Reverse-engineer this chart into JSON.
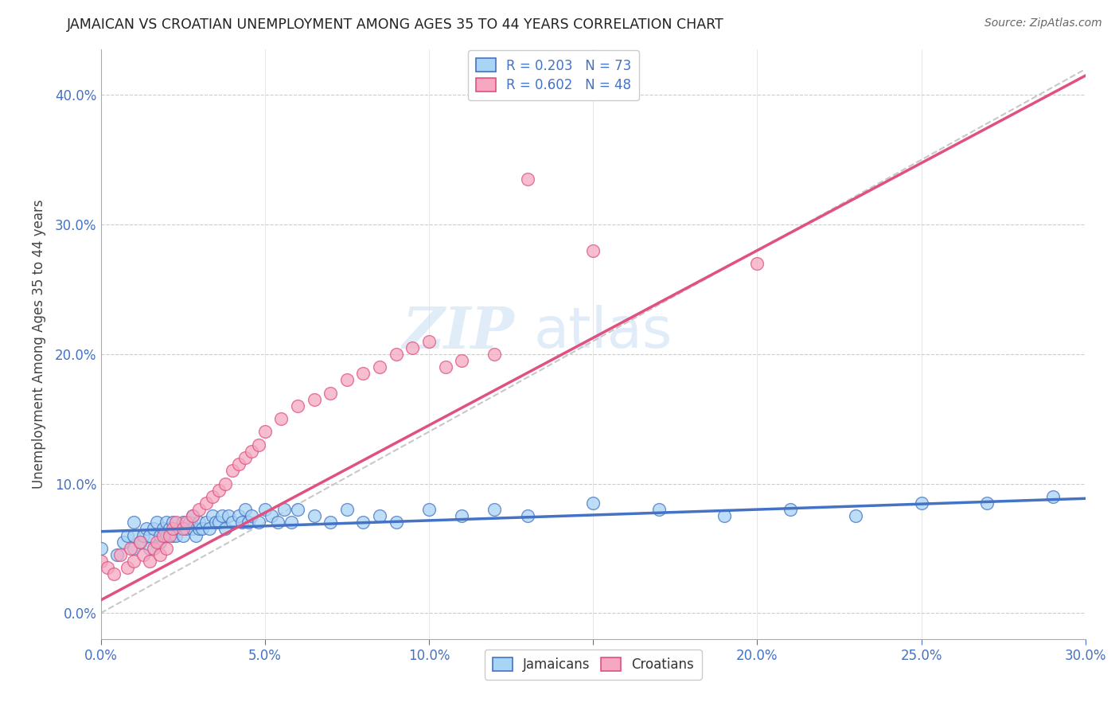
{
  "title": "JAMAICAN VS CROATIAN UNEMPLOYMENT AMONG AGES 35 TO 44 YEARS CORRELATION CHART",
  "source": "Source: ZipAtlas.com",
  "ylabel_label": "Unemployment Among Ages 35 to 44 years",
  "xmin": 0.0,
  "xmax": 0.3,
  "ymin": -0.02,
  "ymax": 0.435,
  "jamaicans_label": "Jamaicans",
  "croatians_label": "Croatians",
  "r_jamaicans": 0.203,
  "n_jamaicans": 73,
  "r_croatians": 0.602,
  "n_croatians": 48,
  "color_jamaicans": "#A8D4F5",
  "color_croatians": "#F5A8C0",
  "color_jamaicans_line": "#4472C4",
  "color_croatians_line": "#E05080",
  "color_ref_line": "#C8C8C8",
  "watermark_zip": "ZIP",
  "watermark_atlas": "atlas",
  "jamaicans_x": [
    0.0,
    0.005,
    0.007,
    0.008,
    0.01,
    0.01,
    0.01,
    0.012,
    0.013,
    0.014,
    0.015,
    0.015,
    0.016,
    0.017,
    0.018,
    0.018,
    0.019,
    0.02,
    0.02,
    0.021,
    0.022,
    0.022,
    0.023,
    0.024,
    0.025,
    0.025,
    0.026,
    0.027,
    0.028,
    0.028,
    0.029,
    0.03,
    0.03,
    0.031,
    0.032,
    0.033,
    0.034,
    0.035,
    0.036,
    0.037,
    0.038,
    0.039,
    0.04,
    0.042,
    0.043,
    0.044,
    0.045,
    0.046,
    0.048,
    0.05,
    0.052,
    0.054,
    0.056,
    0.058,
    0.06,
    0.065,
    0.07,
    0.075,
    0.08,
    0.085,
    0.09,
    0.1,
    0.11,
    0.12,
    0.13,
    0.15,
    0.17,
    0.19,
    0.21,
    0.23,
    0.25,
    0.27,
    0.29
  ],
  "jamaicans_y": [
    0.05,
    0.045,
    0.055,
    0.06,
    0.05,
    0.06,
    0.07,
    0.055,
    0.06,
    0.065,
    0.05,
    0.06,
    0.065,
    0.07,
    0.055,
    0.06,
    0.065,
    0.06,
    0.07,
    0.065,
    0.06,
    0.07,
    0.06,
    0.065,
    0.06,
    0.07,
    0.065,
    0.07,
    0.065,
    0.075,
    0.06,
    0.065,
    0.07,
    0.065,
    0.07,
    0.065,
    0.075,
    0.07,
    0.07,
    0.075,
    0.065,
    0.075,
    0.07,
    0.075,
    0.07,
    0.08,
    0.07,
    0.075,
    0.07,
    0.08,
    0.075,
    0.07,
    0.08,
    0.07,
    0.08,
    0.075,
    0.07,
    0.08,
    0.07,
    0.075,
    0.07,
    0.08,
    0.075,
    0.08,
    0.075,
    0.085,
    0.08,
    0.075,
    0.08,
    0.075,
    0.085,
    0.085,
    0.09
  ],
  "croatians_x": [
    0.0,
    0.002,
    0.004,
    0.006,
    0.008,
    0.009,
    0.01,
    0.012,
    0.013,
    0.015,
    0.016,
    0.017,
    0.018,
    0.019,
    0.02,
    0.021,
    0.022,
    0.023,
    0.025,
    0.026,
    0.028,
    0.03,
    0.032,
    0.034,
    0.036,
    0.038,
    0.04,
    0.042,
    0.044,
    0.046,
    0.048,
    0.05,
    0.055,
    0.06,
    0.065,
    0.07,
    0.075,
    0.08,
    0.085,
    0.09,
    0.095,
    0.1,
    0.105,
    0.11,
    0.12,
    0.13,
    0.15,
    0.2
  ],
  "croatians_y": [
    0.04,
    0.035,
    0.03,
    0.045,
    0.035,
    0.05,
    0.04,
    0.055,
    0.045,
    0.04,
    0.05,
    0.055,
    0.045,
    0.06,
    0.05,
    0.06,
    0.065,
    0.07,
    0.065,
    0.07,
    0.075,
    0.08,
    0.085,
    0.09,
    0.095,
    0.1,
    0.11,
    0.115,
    0.12,
    0.125,
    0.13,
    0.14,
    0.15,
    0.16,
    0.165,
    0.17,
    0.18,
    0.185,
    0.19,
    0.2,
    0.205,
    0.21,
    0.19,
    0.195,
    0.2,
    0.335,
    0.28,
    0.27
  ],
  "jm": 0.085,
  "jb": 0.063,
  "cm": 1.35,
  "cb": 0.01
}
